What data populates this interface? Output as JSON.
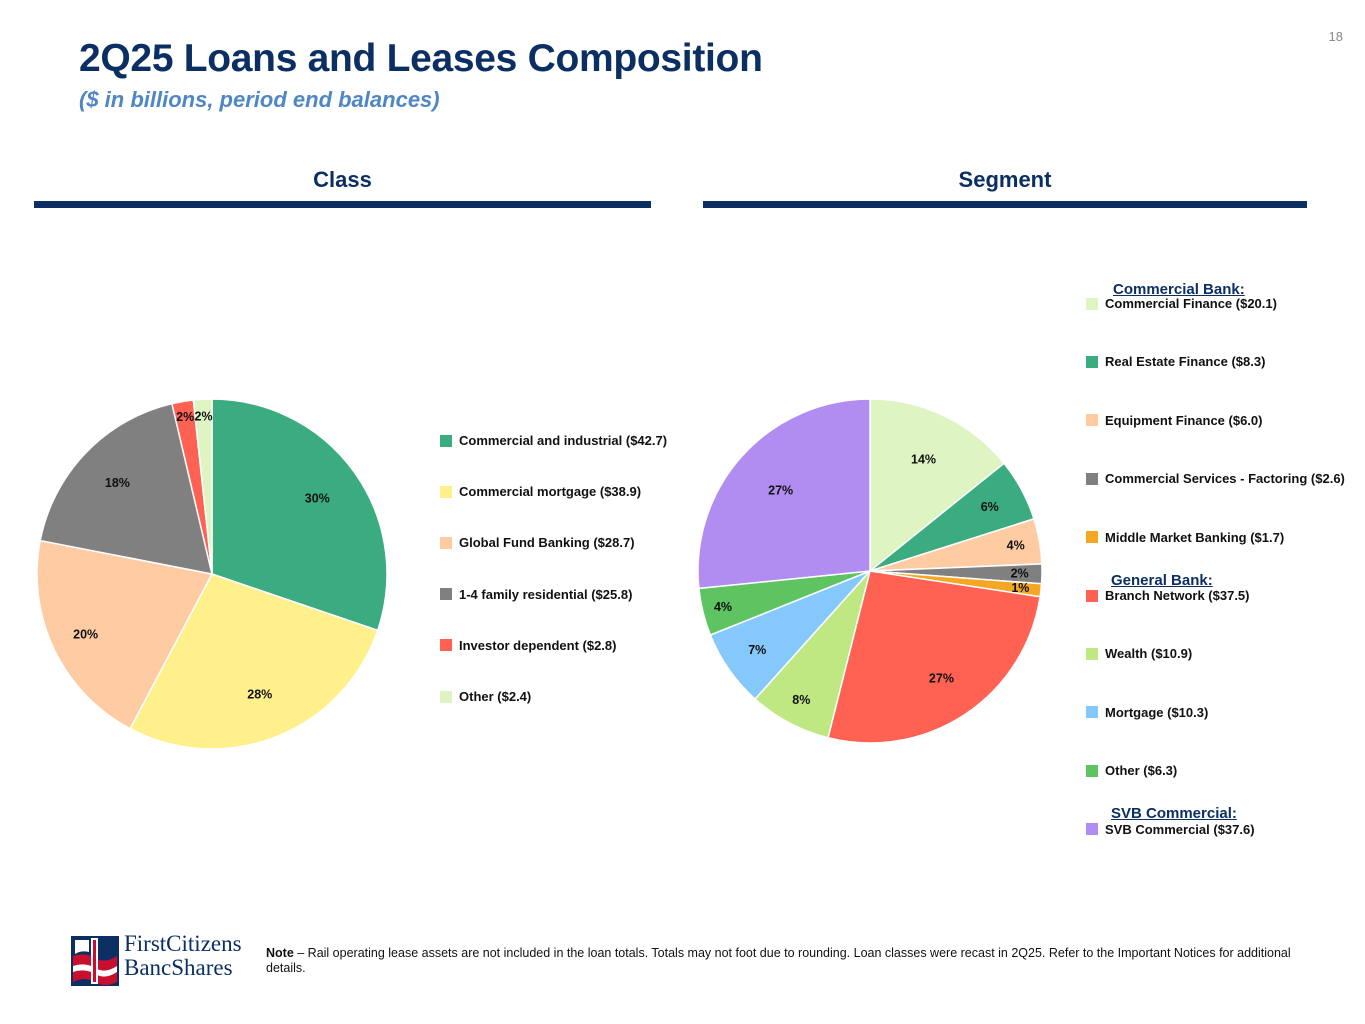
{
  "page_number": "18",
  "title": "2Q25 Loans and Leases Composition",
  "subtitle": "($ in billions, period end balances)",
  "sections": {
    "class": "Class",
    "segment": "Segment"
  },
  "group_headings": {
    "commercial_bank": "Commercial Bank:",
    "general_bank": "General Bank:",
    "svb_commercial": "SVB Commercial:"
  },
  "footer": {
    "note_label": "Note",
    "note_text": " – Rail operating lease assets are not included in the loan totals. Totals may not foot due to rounding. Loan classes were recast in 2Q25. Refer to the Important Notices for additional details.",
    "logo_line1": "FirstCitizens",
    "logo_line2": "BancShares"
  },
  "chart_data": [
    {
      "type": "pie",
      "title": "Class",
      "categories": [
        "Commercial and industrial",
        "Commercial mortgage",
        "Global Fund Banking",
        "1-4 family residential",
        "Investor dependent",
        "Other"
      ],
      "values": [
        42.7,
        38.9,
        28.7,
        25.8,
        2.8,
        2.4
      ],
      "percent_labels": [
        "30%",
        "28%",
        "20%",
        "18%",
        "2%",
        "2%"
      ],
      "legend_labels": [
        "Commercial and industrial ($42.7)",
        "Commercial mortgage ($38.9)",
        "Global Fund Banking ($28.7)",
        "1-4 family residential ($25.8)",
        "Investor dependent ($2.8)",
        "Other ($2.4)"
      ],
      "colors": [
        "#3aac7f",
        "#fff08b",
        "#ffcba3",
        "#808080",
        "#ff6152",
        "#dff4c3"
      ],
      "legend_position": "right"
    },
    {
      "type": "pie",
      "title": "Segment",
      "categories": [
        "Commercial Finance",
        "Real Estate Finance",
        "Equipment Finance",
        "Commercial Services - Factoring",
        "Middle Market Banking",
        "Branch Network",
        "Wealth",
        "Mortgage",
        "Other",
        "SVB Commercial"
      ],
      "values": [
        20.1,
        8.3,
        6.0,
        2.6,
        1.7,
        37.5,
        10.9,
        10.3,
        6.3,
        37.6
      ],
      "percent_labels": [
        "14%",
        "6%",
        "4%",
        "2%",
        "1%",
        "27%",
        "8%",
        "7%",
        "4%",
        "27%"
      ],
      "legend_labels": [
        "Commercial Finance ($20.1)",
        "Real Estate Finance ($8.3)",
        "Equipment Finance ($6.0)",
        "Commercial Services - Factoring  ($2.6)",
        "Middle Market Banking ($1.7)",
        "Branch Network ($37.5)",
        "Wealth ($10.9)",
        "Mortgage ($10.3)",
        "Other ($6.3)",
        "SVB Commercial ($37.6)"
      ],
      "colors": [
        "#dff4c3",
        "#3aac7f",
        "#ffcba3",
        "#808080",
        "#f5a623",
        "#ff6152",
        "#bfe882",
        "#85c8fb",
        "#5ec462",
        "#b18cf1"
      ],
      "legend_position": "right"
    }
  ]
}
